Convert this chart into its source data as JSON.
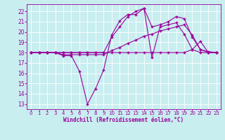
{
  "title": "",
  "xlabel": "Windchill (Refroidissement éolien,°C)",
  "ylabel": "",
  "background_color": "#c8eef0",
  "grid_color": "#ffffff",
  "line_color": "#990099",
  "xlim": [
    -0.5,
    23.5
  ],
  "ylim": [
    12.5,
    22.7
  ],
  "yticks": [
    13,
    14,
    15,
    16,
    17,
    18,
    19,
    20,
    21,
    22
  ],
  "xticks": [
    0,
    1,
    2,
    3,
    4,
    5,
    6,
    7,
    8,
    9,
    10,
    11,
    12,
    13,
    14,
    15,
    16,
    17,
    18,
    19,
    20,
    21,
    22,
    23
  ],
  "series": [
    [
      18.0,
      18.0,
      18.0,
      18.0,
      17.7,
      17.7,
      16.2,
      13.0,
      14.5,
      16.3,
      19.7,
      21.1,
      21.7,
      21.7,
      22.3,
      17.5,
      20.5,
      20.7,
      20.9,
      19.8,
      18.3,
      19.1,
      18.0,
      18.0
    ],
    [
      18.0,
      18.0,
      18.0,
      18.0,
      17.8,
      17.8,
      17.8,
      17.8,
      17.8,
      17.8,
      18.2,
      18.5,
      18.9,
      19.2,
      19.6,
      19.8,
      20.1,
      20.3,
      20.5,
      20.7,
      19.7,
      18.3,
      18.0,
      18.0
    ],
    [
      18.0,
      18.0,
      18.0,
      18.0,
      18.0,
      18.0,
      18.0,
      18.0,
      18.0,
      18.0,
      18.0,
      18.0,
      18.0,
      18.0,
      18.0,
      18.0,
      18.0,
      18.0,
      18.0,
      18.0,
      18.3,
      18.0,
      18.0,
      18.0
    ],
    [
      18.0,
      18.0,
      18.0,
      18.0,
      18.0,
      18.0,
      18.0,
      18.0,
      18.0,
      18.0,
      19.5,
      20.5,
      21.5,
      22.0,
      22.3,
      20.5,
      20.7,
      21.0,
      21.5,
      21.3,
      19.5,
      18.3,
      18.1,
      18.0
    ]
  ]
}
